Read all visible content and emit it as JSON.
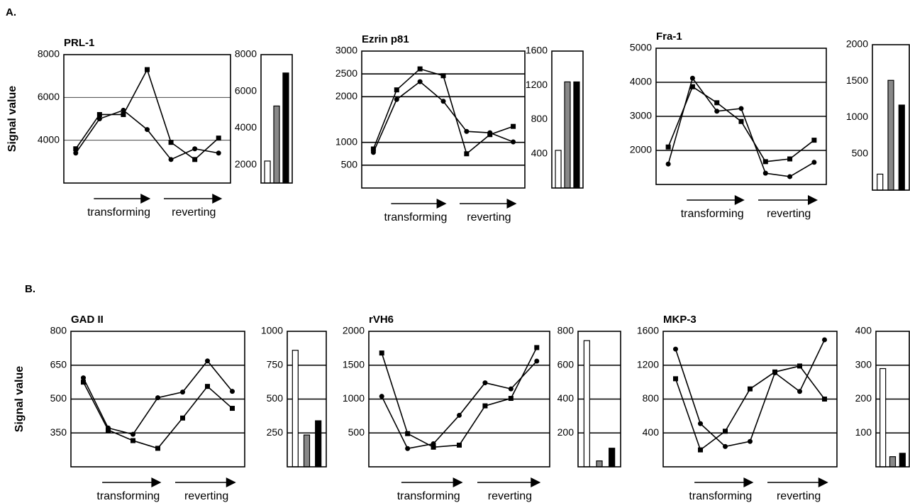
{
  "section_labels": [
    "A.",
    "B."
  ],
  "chart_data": [
    {
      "type": "line",
      "title": "PRL-1",
      "y_label": "Signal value",
      "categories": [
        null,
        null,
        null,
        null,
        null,
        null,
        null
      ],
      "series": [
        {
          "color": "#000000",
          "marker": "square",
          "values": [
            3600,
            5200,
            5200,
            7300,
            3900,
            3100,
            4100
          ]
        },
        {
          "color": "#000000",
          "marker": "circle",
          "values": [
            3400,
            5000,
            5400,
            4500,
            3100,
            3600,
            3400
          ]
        }
      ],
      "ylim": [
        2000,
        8000
      ],
      "yticks": [
        4000,
        6000,
        8000
      ],
      "grid": true,
      "grid_color": "#444444",
      "annotations": [
        "transforming",
        "reverting"
      ]
    },
    {
      "type": "bar",
      "categories": [
        null,
        null,
        null
      ],
      "values": [
        2200,
        5200,
        7000
      ],
      "colors": [
        "#ffffff",
        "#888888",
        "#000000"
      ],
      "ylim": [
        1000,
        8000
      ],
      "yticks": [
        2000,
        4000,
        6000,
        8000
      ],
      "grid": false
    },
    {
      "type": "line",
      "title": "Ezrin p81",
      "categories": [
        null,
        null,
        null,
        null,
        null,
        null,
        null
      ],
      "series": [
        {
          "color": "#000000",
          "marker": "square",
          "values": [
            855,
            2150,
            2610,
            2460,
            750,
            1170,
            1350
          ]
        },
        {
          "color": "#000000",
          "marker": "circle",
          "values": [
            780,
            1940,
            2330,
            1900,
            1240,
            1210,
            1010
          ]
        }
      ],
      "ylim": [
        0,
        3000
      ],
      "yticks": [
        500,
        1000,
        2000,
        2500,
        3000
      ],
      "grid": true,
      "grid_color": "#000000",
      "annotations": [
        "transforming",
        "reverting"
      ]
    },
    {
      "type": "bar",
      "categories": [
        null,
        null,
        null
      ],
      "values": [
        440,
        1240,
        1240
      ],
      "colors": [
        "#ffffff",
        "#888888",
        "#000000"
      ],
      "ylim": [
        0,
        1600
      ],
      "yticks": [
        400,
        800,
        1200,
        1600
      ],
      "grid": false
    },
    {
      "type": "line",
      "title": "Fra-1",
      "categories": [
        null,
        null,
        null,
        null,
        null,
        null,
        null
      ],
      "series": [
        {
          "color": "#000000",
          "marker": "square",
          "values": [
            2100,
            3870,
            3400,
            2850,
            1670,
            1750,
            2300
          ]
        },
        {
          "color": "#000000",
          "marker": "circle",
          "values": [
            1600,
            4120,
            3150,
            3230,
            1330,
            1230,
            1650
          ]
        }
      ],
      "ylim": [
        1000,
        5000
      ],
      "yticks": [
        2000,
        3000,
        4000,
        5000
      ],
      "grid": true,
      "grid_color": "#000000",
      "annotations": [
        "transforming",
        "reverting"
      ]
    },
    {
      "type": "bar",
      "categories": [
        null,
        null,
        null
      ],
      "values": [
        220,
        1510,
        1170
      ],
      "colors": [
        "#ffffff",
        "#888888",
        "#000000"
      ],
      "ylim": [
        0,
        2000
      ],
      "yticks": [
        500,
        1000,
        1500,
        2000
      ],
      "grid": false
    },
    {
      "type": "line",
      "title": "GAD II",
      "y_label": "Signal value",
      "categories": [
        null,
        null,
        null,
        null,
        null,
        null,
        null
      ],
      "series": [
        {
          "color": "#000000",
          "marker": "square",
          "values": [
            575,
            363,
            316,
            282,
            416,
            556,
            459
          ]
        },
        {
          "color": "#000000",
          "marker": "circle",
          "values": [
            594,
            372,
            344,
            506,
            531,
            669,
            534
          ]
        }
      ],
      "ylim": [
        200,
        800
      ],
      "yticks": [
        350,
        500,
        650,
        800
      ],
      "grid": true,
      "grid_color": "#000000",
      "annotations": [
        "transforming",
        "reverting"
      ]
    },
    {
      "type": "bar",
      "categories": [
        null,
        null,
        null
      ],
      "values": [
        860,
        235,
        340
      ],
      "colors": [
        "#ffffff",
        "#888888",
        "#000000"
      ],
      "ylim": [
        0,
        1000
      ],
      "yticks": [
        250,
        500,
        750,
        1000
      ],
      "grid": true,
      "grid_color": "#000000"
    },
    {
      "type": "line",
      "title": "rVH6",
      "categories": [
        null,
        null,
        null,
        null,
        null,
        null,
        null
      ],
      "series": [
        {
          "color": "#000000",
          "marker": "square",
          "values": [
            1680,
            490,
            290,
            320,
            900,
            1010,
            1760
          ]
        },
        {
          "color": "#000000",
          "marker": "circle",
          "values": [
            1040,
            270,
            340,
            760,
            1240,
            1150,
            1560
          ]
        }
      ],
      "ylim": [
        0,
        2000
      ],
      "yticks": [
        500,
        1000,
        1500,
        2000
      ],
      "grid": true,
      "grid_color": "#000000",
      "annotations": [
        "transforming",
        "reverting"
      ]
    },
    {
      "type": "bar",
      "categories": [
        null,
        null,
        null
      ],
      "values": [
        745,
        35,
        110
      ],
      "colors": [
        "#ffffff",
        "#888888",
        "#000000"
      ],
      "ylim": [
        0,
        800
      ],
      "yticks": [
        200,
        400,
        600,
        800
      ],
      "grid": true,
      "grid_color": "#000000"
    },
    {
      "type": "line",
      "title": "MKP-3",
      "categories": [
        null,
        null,
        null,
        null,
        null,
        null,
        null
      ],
      "series": [
        {
          "color": "#000000",
          "marker": "square",
          "values": [
            1040,
            200,
            420,
            920,
            1120,
            1190,
            800
          ]
        },
        {
          "color": "#000000",
          "marker": "circle",
          "values": [
            1390,
            510,
            240,
            300,
            1110,
            890,
            1500
          ]
        }
      ],
      "ylim": [
        0,
        1600
      ],
      "yticks": [
        400,
        800,
        1200,
        1600
      ],
      "grid": true,
      "grid_color": "#000000",
      "annotations": [
        "transforming",
        "reverting"
      ]
    },
    {
      "type": "bar",
      "categories": [
        null,
        null,
        null
      ],
      "values": [
        290,
        30,
        40
      ],
      "colors": [
        "#ffffff",
        "#888888",
        "#000000"
      ],
      "ylim": [
        0,
        400
      ],
      "yticks": [
        100,
        200,
        300,
        400
      ],
      "grid": true,
      "grid_color": "#000000"
    }
  ]
}
